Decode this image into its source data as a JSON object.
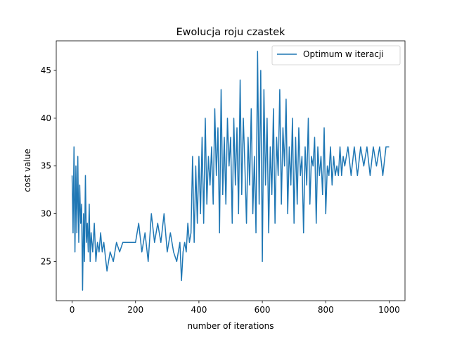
{
  "chart_data": {
    "type": "line",
    "title": "Ewolucja roju czastek",
    "xlabel": "number of iterations",
    "ylabel": "cost value",
    "xlim": [
      -50,
      1050
    ],
    "ylim": [
      20.9,
      48.1
    ],
    "xticks": [
      0,
      200,
      400,
      600,
      800,
      1000
    ],
    "yticks": [
      25,
      30,
      35,
      40,
      45
    ],
    "grid": false,
    "legend_position": "upper-right",
    "series": [
      {
        "name": "Optimum w iteracji",
        "color": "#1f77b4",
        "x": [
          0,
          3,
          6,
          9,
          12,
          15,
          18,
          21,
          24,
          27,
          30,
          33,
          36,
          39,
          42,
          45,
          48,
          51,
          54,
          57,
          60,
          65,
          70,
          75,
          80,
          85,
          90,
          95,
          100,
          110,
          120,
          130,
          140,
          150,
          160,
          170,
          180,
          200,
          210,
          220,
          230,
          240,
          250,
          260,
          270,
          280,
          290,
          300,
          310,
          320,
          330,
          340,
          345,
          350,
          355,
          360,
          365,
          370,
          375,
          380,
          385,
          390,
          395,
          400,
          405,
          410,
          415,
          420,
          425,
          430,
          435,
          440,
          445,
          450,
          455,
          460,
          465,
          470,
          475,
          480,
          485,
          490,
          495,
          500,
          505,
          510,
          515,
          520,
          525,
          530,
          535,
          540,
          545,
          550,
          555,
          560,
          565,
          570,
          575,
          580,
          585,
          590,
          595,
          600,
          605,
          610,
          615,
          620,
          625,
          630,
          635,
          640,
          645,
          650,
          655,
          660,
          665,
          670,
          675,
          680,
          685,
          690,
          695,
          700,
          705,
          710,
          715,
          720,
          725,
          730,
          735,
          740,
          745,
          750,
          755,
          760,
          765,
          770,
          775,
          780,
          785,
          790,
          795,
          800,
          805,
          810,
          815,
          820,
          825,
          830,
          835,
          840,
          845,
          850,
          855,
          860,
          870,
          880,
          890,
          900,
          910,
          920,
          930,
          940,
          950,
          960,
          970,
          980,
          990,
          1000
        ],
        "y": [
          34,
          28,
          37,
          26,
          35,
          28,
          36,
          27,
          33,
          29,
          31,
          22,
          30,
          25,
          34,
          27,
          29,
          26,
          31,
          25,
          28,
          26,
          29,
          25,
          27,
          26,
          28,
          26,
          27,
          24,
          26,
          25,
          27,
          26,
          27,
          27,
          27,
          27,
          29,
          26,
          28,
          25,
          30,
          27,
          29,
          27,
          30,
          26,
          28,
          26,
          25,
          27,
          23,
          26,
          27,
          26,
          29,
          27,
          28,
          36,
          27,
          35,
          29,
          36,
          30,
          38,
          29,
          40,
          31,
          36,
          33,
          37,
          31,
          41,
          34,
          39,
          28,
          43,
          32,
          38,
          31,
          40,
          35,
          38,
          29,
          40,
          33,
          39,
          30,
          44,
          32,
          40,
          35,
          29,
          38,
          33,
          41,
          30,
          36,
          28,
          47,
          31,
          45,
          25,
          43,
          33,
          40,
          28,
          37,
          32,
          41,
          29,
          38,
          34,
          43,
          31,
          39,
          35,
          42,
          30,
          37,
          33,
          40,
          29,
          38,
          31,
          39,
          34,
          36,
          28,
          37,
          33,
          40,
          31,
          36,
          35,
          38,
          29,
          37,
          34,
          36,
          32,
          39,
          30,
          35,
          34,
          37,
          33,
          36,
          34,
          35,
          34,
          37,
          34,
          36,
          35,
          37,
          34,
          37,
          34,
          37,
          35,
          37,
          34,
          37,
          35,
          37,
          34,
          37,
          37
        ]
      }
    ]
  }
}
